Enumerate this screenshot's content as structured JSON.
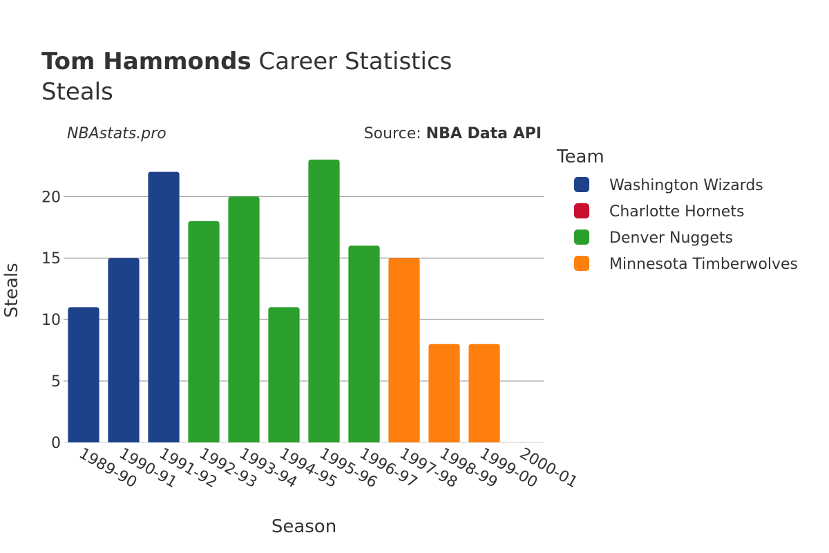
{
  "title": {
    "player": "Tom Hammonds",
    "suffix": " Career Statistics",
    "subtitle": "Steals"
  },
  "watermark": "NBAstats.pro",
  "source": {
    "prefix": "Source: ",
    "name": "NBA Data API"
  },
  "legend": {
    "title": "Team",
    "items": [
      {
        "name": "Washington Wizards",
        "color": "#1d428a"
      },
      {
        "name": "Charlotte Hornets",
        "color": "#c8102e"
      },
      {
        "name": "Denver Nuggets",
        "color": "#2ca02c"
      },
      {
        "name": "Minnesota Timberwolves",
        "color": "#ff7f0e"
      }
    ]
  },
  "chart_data": {
    "type": "bar",
    "title": "Tom Hammonds Career Statistics",
    "subtitle": "Steals",
    "xlabel": "Season",
    "ylabel": "Steals",
    "ylim": [
      0,
      23.5
    ],
    "yticks": [
      0,
      5,
      10,
      15,
      20
    ],
    "grid": true,
    "legend_position": "right",
    "categories": [
      "1989-90",
      "1990-91",
      "1991-92",
      "1992-93",
      "1993-94",
      "1994-95",
      "1995-96",
      "1996-97",
      "1997-98",
      "1998-99",
      "1999-00",
      "2000-01"
    ],
    "values": [
      11,
      15,
      22,
      18,
      20,
      11,
      23,
      16,
      15,
      8,
      8,
      0
    ],
    "teams": [
      "Washington Wizards",
      "Washington Wizards",
      "Washington Wizards",
      "Denver Nuggets",
      "Denver Nuggets",
      "Denver Nuggets",
      "Denver Nuggets",
      "Denver Nuggets",
      "Minnesota Timberwolves",
      "Minnesota Timberwolves",
      "Minnesota Timberwolves",
      "Charlotte Hornets"
    ],
    "series": [
      {
        "name": "Washington Wizards",
        "color": "#1d428a"
      },
      {
        "name": "Charlotte Hornets",
        "color": "#c8102e"
      },
      {
        "name": "Denver Nuggets",
        "color": "#2ca02c"
      },
      {
        "name": "Minnesota Timberwolves",
        "color": "#ff7f0e"
      }
    ]
  }
}
